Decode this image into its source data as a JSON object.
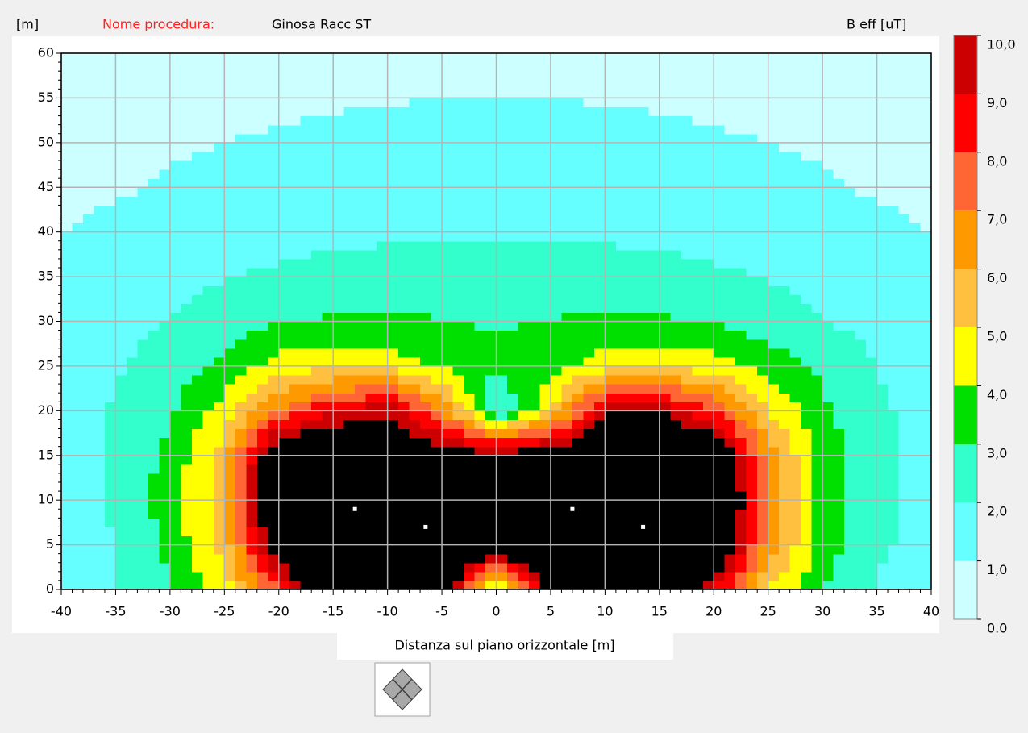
{
  "chart_data": {
    "type": "heatmap",
    "title_label": "Nome procedura:",
    "title": "Ginosa Racc ST",
    "y_label": "[m]",
    "x_label": "Distanza sul piano orizzontale [m]",
    "colorbar_label": "B eff [uT]",
    "x": [
      -40,
      -35,
      -30,
      -25,
      -20,
      -15,
      -10,
      -5,
      0,
      5,
      10,
      15,
      20,
      25,
      30,
      35,
      40
    ],
    "y": [
      0,
      5,
      10,
      15,
      20,
      25,
      30,
      35,
      40,
      45,
      50,
      55,
      60
    ],
    "z": [
      [
        1.5,
        2.0,
        2.8,
        4.5,
        8,
        12,
        14,
        11,
        3.5,
        10.5,
        14,
        13,
        9,
        5,
        3,
        1.9,
        1.4
      ],
      [
        1.5,
        2.0,
        3.3,
        5.5,
        11,
        14,
        14,
        14,
        11,
        14,
        14,
        14,
        12,
        6.5,
        3.5,
        2.2,
        1.5
      ],
      [
        1.7,
        2.1,
        3.5,
        5.5,
        14,
        14,
        14,
        14,
        14,
        14,
        14,
        14,
        14,
        6.5,
        3.7,
        2.3,
        1.7
      ],
      [
        1.6,
        2.1,
        3.3,
        5.5,
        12,
        12,
        12,
        11,
        10.5,
        11,
        12,
        12,
        12,
        6.5,
        3.5,
        2.3,
        1.6
      ],
      [
        1.5,
        2.1,
        2.8,
        4.5,
        7,
        9,
        9.8,
        7,
        1.8,
        5,
        9.8,
        10,
        8,
        5,
        3.2,
        2.2,
        1.5
      ],
      [
        1.4,
        1.9,
        2.5,
        3.2,
        4.5,
        4.8,
        4.6,
        3.8,
        3.2,
        3.5,
        4.5,
        4.8,
        4.5,
        3.5,
        2.8,
        2.0,
        1.4
      ],
      [
        1.3,
        1.7,
        2.0,
        2.5,
        3.0,
        3.1,
        3.15,
        3.05,
        2.9,
        3.05,
        3.15,
        3.1,
        3.0,
        2.5,
        2.0,
        1.7,
        1.3
      ],
      [
        1.1,
        1.4,
        1.7,
        1.95,
        2.15,
        2.3,
        2.4,
        2.45,
        2.45,
        2.45,
        2.4,
        2.3,
        2.15,
        1.95,
        1.7,
        1.4,
        1.1
      ],
      [
        1.0,
        1.2,
        1.4,
        1.6,
        1.7,
        1.8,
        1.85,
        1.9,
        1.9,
        1.9,
        1.85,
        1.8,
        1.7,
        1.6,
        1.4,
        1.2,
        1.0
      ],
      [
        0.8,
        0.9,
        1.1,
        1.3,
        1.4,
        1.45,
        1.5,
        1.55,
        1.6,
        1.55,
        1.5,
        1.45,
        1.4,
        1.3,
        1.1,
        0.9,
        0.8
      ],
      [
        0.7,
        0.8,
        0.9,
        1.0,
        1.1,
        1.2,
        1.25,
        1.3,
        1.3,
        1.3,
        1.25,
        1.2,
        1.1,
        1.0,
        0.9,
        0.8,
        0.7
      ],
      [
        0.6,
        0.7,
        0.75,
        0.8,
        0.85,
        0.9,
        0.95,
        1.0,
        1.0,
        1.0,
        0.95,
        0.9,
        0.85,
        0.8,
        0.75,
        0.7,
        0.6
      ],
      [
        0.5,
        0.55,
        0.6,
        0.65,
        0.7,
        0.75,
        0.8,
        0.85,
        0.85,
        0.85,
        0.8,
        0.75,
        0.7,
        0.65,
        0.6,
        0.55,
        0.5
      ]
    ],
    "xlim": [
      -40,
      40
    ],
    "ylim": [
      0,
      60
    ],
    "xticks": [
      -40,
      -35,
      -30,
      -25,
      -20,
      -15,
      -10,
      -5,
      0,
      5,
      10,
      15,
      20,
      25,
      30,
      35,
      40
    ],
    "yticks": [
      0,
      5,
      10,
      15,
      20,
      25,
      30,
      35,
      40,
      45,
      50,
      55,
      60
    ],
    "grid": true,
    "clim": [
      0,
      10
    ],
    "levels": [
      {
        "value": 0,
        "label": "0.0"
      },
      {
        "value": 1,
        "label": "1,0"
      },
      {
        "value": 2,
        "label": "2,0"
      },
      {
        "value": 3,
        "label": "3,0"
      },
      {
        "value": 4,
        "label": "4,0"
      },
      {
        "value": 5,
        "label": "5,0"
      },
      {
        "value": 6,
        "label": "6,0"
      },
      {
        "value": 7,
        "label": "7,0"
      },
      {
        "value": 8,
        "label": "8,0"
      },
      {
        "value": 9,
        "label": "9,0"
      },
      {
        "value": 10,
        "label": "10,0"
      }
    ],
    "colors": [
      "#ccffff",
      "#66ffff",
      "#33ffcc",
      "#00e000",
      "#ffff00",
      "#ffc040",
      "#ff9900",
      "#ff6633",
      "#ff0000",
      "#cc0000"
    ],
    "over_color": "#000000",
    "conductors": {
      "x": [
        -13,
        -6.5,
        7,
        13.5
      ],
      "y": [
        9,
        7,
        9,
        7
      ],
      "color": "#ffffff"
    }
  }
}
